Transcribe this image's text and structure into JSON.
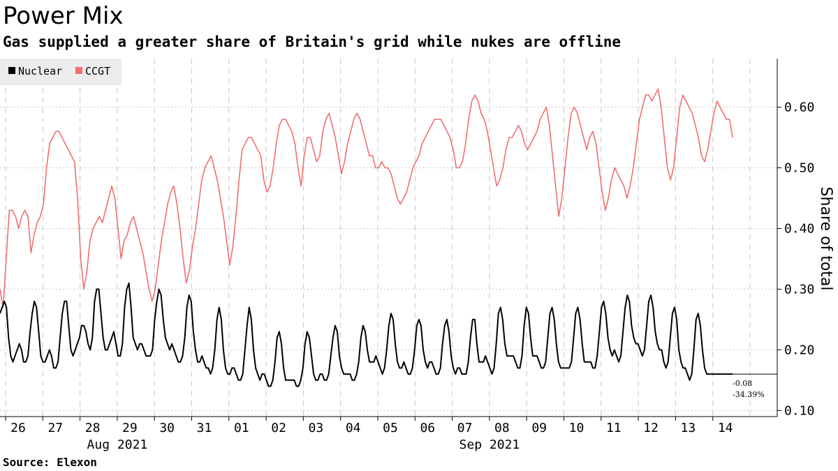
{
  "header": {
    "title": "Power Mix",
    "subtitle": "Gas supplied a greater share of Britain's grid while nukes are offline"
  },
  "footer": {
    "source": "Source: Elexon"
  },
  "colors": {
    "nuclear": "#000000",
    "ccgt": "#f07070",
    "grid": "#c8c8c8",
    "legend_bg": "#ececec"
  },
  "chart_data": {
    "type": "line",
    "title": "Power Mix",
    "subtitle": "Gas supplied a greater share of Britain's grid while nukes are offline",
    "xlabel": "",
    "ylabel": "Share of total",
    "ylim": [
      0.09,
      0.68
    ],
    "yticks": [
      0.1,
      0.2,
      0.3,
      0.4,
      0.5,
      0.6
    ],
    "ytick_labels": [
      "0.10",
      "0.20",
      "0.30",
      "0.40",
      "0.50",
      "0.60"
    ],
    "x_start_day": 0,
    "x_end_day": 20.1,
    "day_labels": [
      "26",
      "27",
      "28",
      "29",
      "30",
      "31",
      "01",
      "02",
      "03",
      "04",
      "05",
      "06",
      "07",
      "08",
      "09",
      "10",
      "11",
      "12",
      "13",
      "14"
    ],
    "month_labels": [
      {
        "label": "Aug 2021",
        "day": 3.0
      },
      {
        "label": "Sep 2021",
        "day": 13.0
      }
    ],
    "legend": [
      "Nuclear",
      "CCGT"
    ],
    "legend_position": "top-left",
    "grid": true,
    "series": [
      {
        "name": "Nuclear",
        "sample_step_days": 0.1,
        "values": [
          0.26,
          0.27,
          0.28,
          0.27,
          0.22,
          0.19,
          0.18,
          0.19,
          0.2,
          0.21,
          0.2,
          0.18,
          0.18,
          0.19,
          0.23,
          0.26,
          0.28,
          0.27,
          0.23,
          0.19,
          0.18,
          0.18,
          0.19,
          0.2,
          0.19,
          0.17,
          0.17,
          0.18,
          0.22,
          0.26,
          0.28,
          0.28,
          0.24,
          0.2,
          0.19,
          0.2,
          0.21,
          0.22,
          0.24,
          0.24,
          0.23,
          0.21,
          0.2,
          0.22,
          0.28,
          0.3,
          0.3,
          0.26,
          0.22,
          0.2,
          0.2,
          0.21,
          0.22,
          0.23,
          0.21,
          0.19,
          0.19,
          0.21,
          0.27,
          0.3,
          0.31,
          0.27,
          0.22,
          0.21,
          0.2,
          0.21,
          0.21,
          0.2,
          0.19,
          0.19,
          0.19,
          0.2,
          0.25,
          0.28,
          0.3,
          0.29,
          0.25,
          0.22,
          0.21,
          0.2,
          0.21,
          0.2,
          0.19,
          0.18,
          0.18,
          0.19,
          0.22,
          0.27,
          0.29,
          0.28,
          0.23,
          0.2,
          0.18,
          0.18,
          0.19,
          0.18,
          0.17,
          0.17,
          0.16,
          0.17,
          0.2,
          0.25,
          0.27,
          0.25,
          0.2,
          0.17,
          0.16,
          0.16,
          0.17,
          0.17,
          0.16,
          0.15,
          0.15,
          0.16,
          0.2,
          0.24,
          0.27,
          0.25,
          0.2,
          0.17,
          0.16,
          0.15,
          0.16,
          0.16,
          0.15,
          0.14,
          0.14,
          0.15,
          0.18,
          0.22,
          0.23,
          0.21,
          0.17,
          0.15,
          0.15,
          0.15,
          0.15,
          0.15,
          0.14,
          0.14,
          0.15,
          0.17,
          0.21,
          0.23,
          0.22,
          0.19,
          0.16,
          0.15,
          0.15,
          0.16,
          0.16,
          0.15,
          0.15,
          0.16,
          0.19,
          0.22,
          0.24,
          0.23,
          0.19,
          0.17,
          0.16,
          0.16,
          0.16,
          0.16,
          0.15,
          0.15,
          0.16,
          0.18,
          0.22,
          0.24,
          0.23,
          0.2,
          0.18,
          0.18,
          0.18,
          0.19,
          0.18,
          0.17,
          0.16,
          0.17,
          0.2,
          0.24,
          0.26,
          0.25,
          0.21,
          0.18,
          0.17,
          0.17,
          0.18,
          0.17,
          0.16,
          0.16,
          0.17,
          0.2,
          0.24,
          0.25,
          0.24,
          0.2,
          0.18,
          0.17,
          0.18,
          0.18,
          0.17,
          0.16,
          0.16,
          0.17,
          0.21,
          0.24,
          0.25,
          0.23,
          0.19,
          0.17,
          0.16,
          0.17,
          0.17,
          0.16,
          0.16,
          0.16,
          0.18,
          0.22,
          0.25,
          0.25,
          0.21,
          0.18,
          0.18,
          0.18,
          0.19,
          0.18,
          0.17,
          0.16,
          0.17,
          0.21,
          0.26,
          0.27,
          0.25,
          0.21,
          0.19,
          0.19,
          0.19,
          0.19,
          0.18,
          0.17,
          0.17,
          0.19,
          0.24,
          0.27,
          0.26,
          0.22,
          0.19,
          0.19,
          0.19,
          0.18,
          0.17,
          0.17,
          0.18,
          0.22,
          0.26,
          0.27,
          0.25,
          0.21,
          0.18,
          0.17,
          0.17,
          0.17,
          0.17,
          0.17,
          0.18,
          0.22,
          0.26,
          0.27,
          0.25,
          0.21,
          0.18,
          0.18,
          0.18,
          0.18,
          0.17,
          0.17,
          0.19,
          0.23,
          0.27,
          0.28,
          0.26,
          0.22,
          0.2,
          0.19,
          0.2,
          0.19,
          0.18,
          0.19,
          0.23,
          0.27,
          0.29,
          0.28,
          0.24,
          0.22,
          0.21,
          0.21,
          0.2,
          0.19,
          0.2,
          0.24,
          0.28,
          0.29,
          0.27,
          0.23,
          0.21,
          0.2,
          0.2,
          0.18,
          0.17,
          0.18,
          0.22,
          0.26,
          0.27,
          0.25,
          0.2,
          0.18,
          0.17,
          0.17,
          0.16,
          0.15,
          0.16,
          0.2,
          0.25,
          0.26,
          0.24,
          0.2,
          0.17,
          0.16,
          0.16,
          0.16,
          0.16,
          0.16,
          0.16,
          0.16,
          0.16,
          0.16,
          0.16,
          0.16,
          0.16,
          0.16
        ]
      },
      {
        "name": "CCGT",
        "sample_step_days": 0.1,
        "values": [
          0.3,
          0.27,
          0.35,
          0.43,
          0.43,
          0.42,
          0.4,
          0.42,
          0.43,
          0.42,
          0.36,
          0.39,
          0.41,
          0.42,
          0.44,
          0.5,
          0.54,
          0.55,
          0.56,
          0.56,
          0.55,
          0.54,
          0.53,
          0.52,
          0.51,
          0.45,
          0.35,
          0.3,
          0.33,
          0.38,
          0.4,
          0.41,
          0.42,
          0.41,
          0.43,
          0.45,
          0.47,
          0.45,
          0.4,
          0.35,
          0.38,
          0.39,
          0.41,
          0.42,
          0.4,
          0.38,
          0.36,
          0.33,
          0.3,
          0.28,
          0.3,
          0.34,
          0.38,
          0.41,
          0.44,
          0.46,
          0.47,
          0.44,
          0.4,
          0.35,
          0.31,
          0.33,
          0.37,
          0.4,
          0.44,
          0.48,
          0.5,
          0.51,
          0.52,
          0.5,
          0.48,
          0.45,
          0.42,
          0.38,
          0.34,
          0.37,
          0.42,
          0.48,
          0.53,
          0.54,
          0.55,
          0.55,
          0.54,
          0.53,
          0.52,
          0.48,
          0.46,
          0.47,
          0.5,
          0.54,
          0.57,
          0.58,
          0.58,
          0.57,
          0.56,
          0.54,
          0.5,
          0.47,
          0.52,
          0.55,
          0.55,
          0.53,
          0.51,
          0.52,
          0.56,
          0.58,
          0.59,
          0.57,
          0.55,
          0.52,
          0.49,
          0.51,
          0.54,
          0.56,
          0.58,
          0.59,
          0.58,
          0.56,
          0.54,
          0.52,
          0.52,
          0.5,
          0.5,
          0.51,
          0.5,
          0.5,
          0.49,
          0.47,
          0.45,
          0.44,
          0.45,
          0.46,
          0.48,
          0.5,
          0.51,
          0.52,
          0.54,
          0.55,
          0.56,
          0.57,
          0.58,
          0.58,
          0.58,
          0.57,
          0.56,
          0.55,
          0.53,
          0.5,
          0.5,
          0.51,
          0.54,
          0.58,
          0.61,
          0.62,
          0.61,
          0.59,
          0.58,
          0.56,
          0.53,
          0.5,
          0.47,
          0.48,
          0.5,
          0.53,
          0.55,
          0.55,
          0.56,
          0.57,
          0.56,
          0.54,
          0.53,
          0.54,
          0.55,
          0.56,
          0.58,
          0.59,
          0.6,
          0.57,
          0.52,
          0.47,
          0.42,
          0.45,
          0.5,
          0.55,
          0.59,
          0.6,
          0.59,
          0.57,
          0.55,
          0.53,
          0.55,
          0.56,
          0.54,
          0.5,
          0.46,
          0.43,
          0.45,
          0.48,
          0.5,
          0.49,
          0.48,
          0.47,
          0.45,
          0.47,
          0.5,
          0.54,
          0.58,
          0.6,
          0.62,
          0.62,
          0.61,
          0.62,
          0.63,
          0.6,
          0.55,
          0.5,
          0.48,
          0.5,
          0.55,
          0.6,
          0.62,
          0.61,
          0.6,
          0.59,
          0.57,
          0.55,
          0.52,
          0.51,
          0.53,
          0.56,
          0.59,
          0.61,
          0.6,
          0.59,
          0.58,
          0.58,
          0.55
        ]
      }
    ],
    "annotation": {
      "change": "-0.08",
      "percent": "-34.39%",
      "last_value": 0.16
    }
  }
}
